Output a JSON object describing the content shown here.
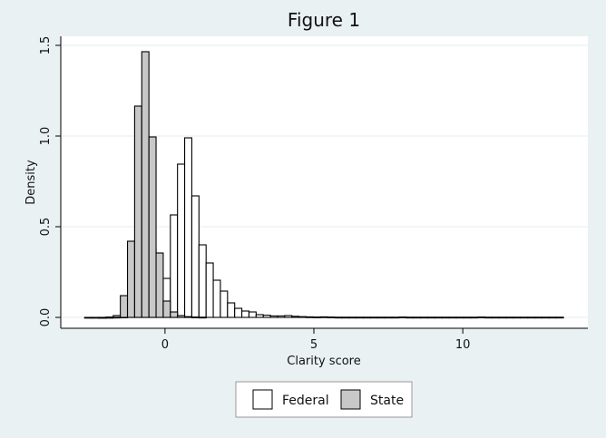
{
  "chart_data": {
    "type": "histogram",
    "title": "Figure 1",
    "xlabel": "Clarity score",
    "ylabel": "Density",
    "xlim": [
      -3.5,
      14.2
    ],
    "ylim": [
      -0.06,
      1.55
    ],
    "x_ticks": [
      0,
      5,
      10
    ],
    "x_tick_labels": [
      "0",
      "5",
      "10"
    ],
    "y_ticks": [
      0,
      0.5,
      1.0,
      1.5
    ],
    "y_tick_labels": [
      "0.0",
      "0.5",
      "1.0",
      "1.5"
    ],
    "grid": true,
    "legend_position": "bottom",
    "bin_width": 0.24,
    "series": [
      {
        "name": "Federal",
        "color": "#ffffff",
        "bins": [
          [
            -2.7,
            0.0
          ],
          [
            -2.46,
            0.0
          ],
          [
            -2.22,
            0.0
          ],
          [
            -1.98,
            0.0
          ],
          [
            -1.74,
            0.001
          ],
          [
            -1.5,
            0.002
          ],
          [
            -1.26,
            0.005
          ],
          [
            -1.02,
            0.01
          ],
          [
            -0.78,
            0.03
          ],
          [
            -0.54,
            0.375
          ],
          [
            -0.3,
            0.165
          ],
          [
            -0.06,
            0.215
          ],
          [
            0.18,
            0.565
          ],
          [
            0.42,
            0.845
          ],
          [
            0.66,
            0.99
          ],
          [
            0.9,
            0.67
          ],
          [
            1.14,
            0.4
          ],
          [
            1.38,
            0.3
          ],
          [
            1.62,
            0.205
          ],
          [
            1.86,
            0.145
          ],
          [
            2.1,
            0.08
          ],
          [
            2.34,
            0.05
          ],
          [
            2.58,
            0.035
          ],
          [
            2.82,
            0.03
          ],
          [
            3.06,
            0.015
          ],
          [
            3.3,
            0.012
          ],
          [
            3.54,
            0.008
          ],
          [
            3.78,
            0.008
          ],
          [
            4.02,
            0.01
          ],
          [
            4.26,
            0.006
          ],
          [
            4.5,
            0.004
          ],
          [
            4.74,
            0.003
          ],
          [
            4.98,
            0.002
          ],
          [
            5.22,
            0.003
          ],
          [
            5.46,
            0.002
          ],
          [
            5.7,
            0.001
          ],
          [
            5.94,
            0.001
          ],
          [
            6.18,
            0.001
          ],
          [
            6.42,
            0.001
          ],
          [
            6.66,
            0.001
          ],
          [
            6.9,
            0.001
          ],
          [
            7.14,
            0.001
          ],
          [
            7.38,
            0.001
          ],
          [
            7.62,
            0.001
          ],
          [
            7.86,
            0.002
          ],
          [
            8.1,
            0.001
          ],
          [
            8.34,
            0.001
          ],
          [
            8.58,
            0.001
          ],
          [
            8.82,
            0.001
          ],
          [
            9.06,
            0.001
          ],
          [
            9.3,
            0.001
          ],
          [
            9.54,
            0.001
          ],
          [
            9.78,
            0.001
          ],
          [
            10.02,
            0.001
          ],
          [
            10.26,
            0.001
          ],
          [
            10.5,
            0.002
          ],
          [
            10.74,
            0.001
          ],
          [
            10.98,
            0.001
          ],
          [
            11.22,
            0.001
          ],
          [
            11.46,
            0.001
          ],
          [
            11.7,
            0.001
          ],
          [
            11.94,
            0.001
          ],
          [
            12.18,
            0.001
          ],
          [
            12.42,
            0.001
          ],
          [
            12.66,
            0.001
          ],
          [
            12.9,
            0.001
          ],
          [
            13.14,
            0.001
          ]
        ]
      },
      {
        "name": "State",
        "color": "#c8c8c8",
        "bins": [
          [
            -2.22,
            0.0
          ],
          [
            -1.98,
            0.002
          ],
          [
            -1.74,
            0.01
          ],
          [
            -1.5,
            0.12
          ],
          [
            -1.26,
            0.42
          ],
          [
            -1.02,
            1.165
          ],
          [
            -0.78,
            1.465
          ],
          [
            -0.54,
            0.995
          ],
          [
            -0.3,
            0.355
          ],
          [
            -0.06,
            0.09
          ],
          [
            0.18,
            0.03
          ],
          [
            0.42,
            0.01
          ],
          [
            0.66,
            0.004
          ],
          [
            0.9,
            0.002
          ],
          [
            1.14,
            0.001
          ]
        ]
      }
    ]
  }
}
